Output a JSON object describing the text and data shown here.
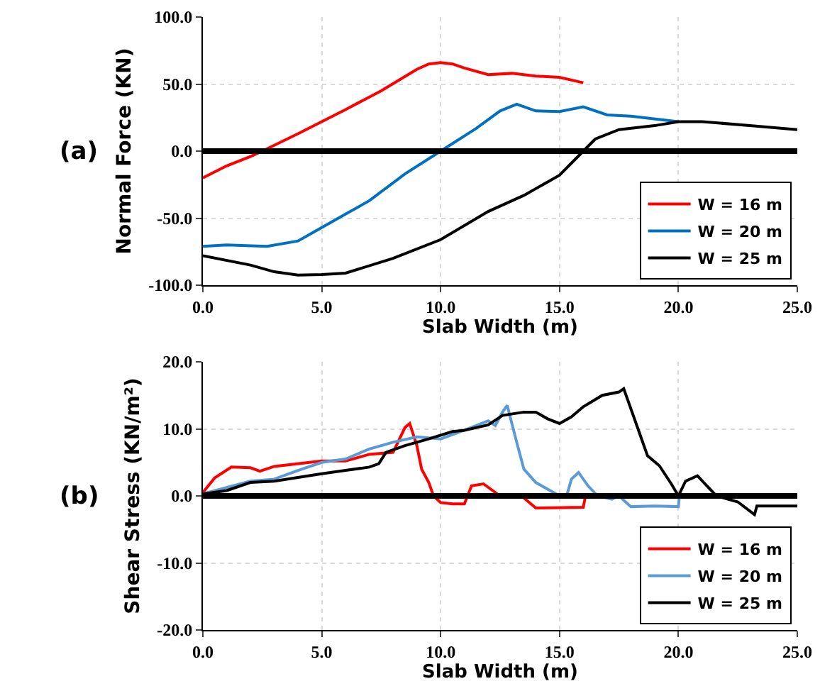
{
  "chart_data": [
    {
      "type": "line",
      "ylabel": "Normal Force (KN)",
      "xlabel": "Slab Width (m)",
      "annotations": [
        "(a)"
      ],
      "xlim": [
        0,
        25
      ],
      "xticks": [
        {
          "value": 0,
          "label": "0.0"
        },
        {
          "value": 5,
          "label": "5.0"
        },
        {
          "value": 10,
          "label": "10.0"
        },
        {
          "value": 15,
          "label": "15.0"
        },
        {
          "value": 20,
          "label": "20.0"
        },
        {
          "value": 25,
          "label": "25.0"
        }
      ],
      "ylim": [
        -100,
        100
      ],
      "yticks": [
        {
          "value": -100,
          "label": "-100.0"
        },
        {
          "value": -50,
          "label": "-50.0"
        },
        {
          "value": 0,
          "label": "0.0"
        },
        {
          "value": 50,
          "label": "50.0"
        },
        {
          "value": 100,
          "label": "100.0"
        }
      ],
      "grid": true,
      "legend": "bottom right",
      "ref_lines": [
        {
          "axis": "y",
          "value": 0,
          "color": "#000000"
        }
      ],
      "series": [
        {
          "name": "W = 16 m",
          "color": "#ff0000",
          "x": [
            0,
            1,
            2,
            2.5,
            4,
            5,
            6,
            7.5,
            9,
            9.5,
            10,
            10.5,
            11,
            12,
            13,
            14,
            15,
            16
          ],
          "values": [
            -20,
            -11,
            -4,
            0,
            13,
            22,
            31,
            45,
            61,
            65,
            66,
            65,
            62,
            57,
            58,
            56,
            55,
            51
          ]
        },
        {
          "name": "W = 20 m",
          "color": "#0070c0",
          "x": [
            0,
            1,
            2.7,
            4,
            5,
            6,
            7,
            8.5,
            10,
            11.5,
            12.5,
            13.2,
            14,
            15,
            16,
            17,
            18,
            20
          ],
          "values": [
            -71,
            -70,
            -71,
            -67,
            -57,
            -47,
            -37,
            -17,
            0,
            17,
            30,
            35,
            30,
            29.5,
            33,
            27,
            26,
            22
          ]
        },
        {
          "name": "W = 25 m",
          "color": "#000000",
          "x": [
            0,
            2,
            3,
            4,
            5,
            6,
            8,
            10,
            12,
            13.5,
            15,
            16,
            16.5,
            17.5,
            19,
            20,
            21,
            23,
            25
          ],
          "values": [
            -78,
            -85,
            -90,
            -92.5,
            -92,
            -91,
            -80,
            -66,
            -45,
            -33,
            -18,
            0,
            9,
            16,
            19,
            22,
            22,
            19,
            16
          ]
        }
      ]
    },
    {
      "type": "line",
      "ylabel": "Shear Stress (KN/m²)",
      "xlabel": "Slab Width (m)",
      "annotations": [
        "(b)"
      ],
      "xlim": [
        0,
        25
      ],
      "xticks": [
        {
          "value": 0,
          "label": "0.0"
        },
        {
          "value": 5,
          "label": "5.0"
        },
        {
          "value": 10,
          "label": "10.0"
        },
        {
          "value": 15,
          "label": "15.0"
        },
        {
          "value": 20,
          "label": "20.0"
        },
        {
          "value": 25,
          "label": "25.0"
        }
      ],
      "ylim": [
        -20,
        20
      ],
      "yticks": [
        {
          "value": -20,
          "label": "-20.0"
        },
        {
          "value": -10,
          "label": "-10.0"
        },
        {
          "value": 0,
          "label": "0.0"
        },
        {
          "value": 10,
          "label": "10.0"
        },
        {
          "value": 20,
          "label": "20.0"
        }
      ],
      "grid": true,
      "legend": "bottom right",
      "ref_lines": [
        {
          "axis": "y",
          "value": 0,
          "color": "#000000"
        }
      ],
      "series": [
        {
          "name": "W = 16 m",
          "color": "#ff0000",
          "x": [
            0,
            0.5,
            1.2,
            2,
            2.4,
            3,
            5,
            6,
            7,
            8,
            8.5,
            8.7,
            9,
            9.2,
            9.5,
            9.7,
            10,
            10.5,
            11,
            11.3,
            11.8,
            12.5,
            13.4,
            14,
            16,
            16.1
          ],
          "values": [
            0.5,
            2.7,
            4.3,
            4.2,
            3.7,
            4.4,
            5.2,
            5.2,
            6.2,
            6.5,
            10.2,
            10.8,
            7.5,
            4,
            2,
            0,
            -1,
            -1.2,
            -1.2,
            1.5,
            1.8,
            0,
            0,
            -1.8,
            -1.7,
            0.2
          ]
        },
        {
          "name": "W = 20 m",
          "color": "#5b9bd5",
          "x": [
            0,
            2,
            3,
            4,
            5,
            6,
            7,
            8,
            9,
            10,
            11,
            12,
            12.3,
            12.6,
            12.8,
            13.2,
            13.5,
            14,
            14.5,
            15,
            15.3,
            15.5,
            15.8,
            16.2,
            16.6,
            17.2,
            17.5,
            18,
            19,
            20,
            20.05
          ],
          "values": [
            0.3,
            2.2,
            2.5,
            3.8,
            5,
            5.5,
            7,
            8,
            8.8,
            8.5,
            9.8,
            11.2,
            10.5,
            12.5,
            13.5,
            8,
            4,
            2,
            1,
            0,
            0,
            2.5,
            3.5,
            1.5,
            0,
            -0.5,
            0,
            -1.6,
            -1.5,
            -1.6,
            0.3
          ]
        },
        {
          "name": "W = 25 m",
          "color": "#000000",
          "x": [
            0,
            1,
            2,
            3,
            5,
            6,
            7,
            7.4,
            7.7,
            8.5,
            9.5,
            10.5,
            11,
            12,
            12.6,
            13.5,
            14,
            14.5,
            15,
            15.5,
            16,
            16.8,
            17.5,
            17.7,
            17.9,
            18.3,
            18.7,
            19.2,
            19.7,
            20,
            20.3,
            20.8,
            21.2,
            21.6,
            22.5,
            23.2,
            23.3,
            25
          ],
          "values": [
            0.3,
            0.8,
            2,
            2.2,
            3.3,
            3.8,
            4.3,
            4.8,
            6.5,
            7.5,
            8.5,
            9.6,
            9.8,
            10.6,
            12,
            12.5,
            12.5,
            11.5,
            10.8,
            11.8,
            13.3,
            15,
            15.5,
            16,
            14,
            10,
            6,
            4.5,
            1.8,
            0,
            2.2,
            3,
            1.5,
            0,
            -0.9,
            -2.8,
            -1.5,
            -1.5
          ]
        }
      ]
    }
  ]
}
